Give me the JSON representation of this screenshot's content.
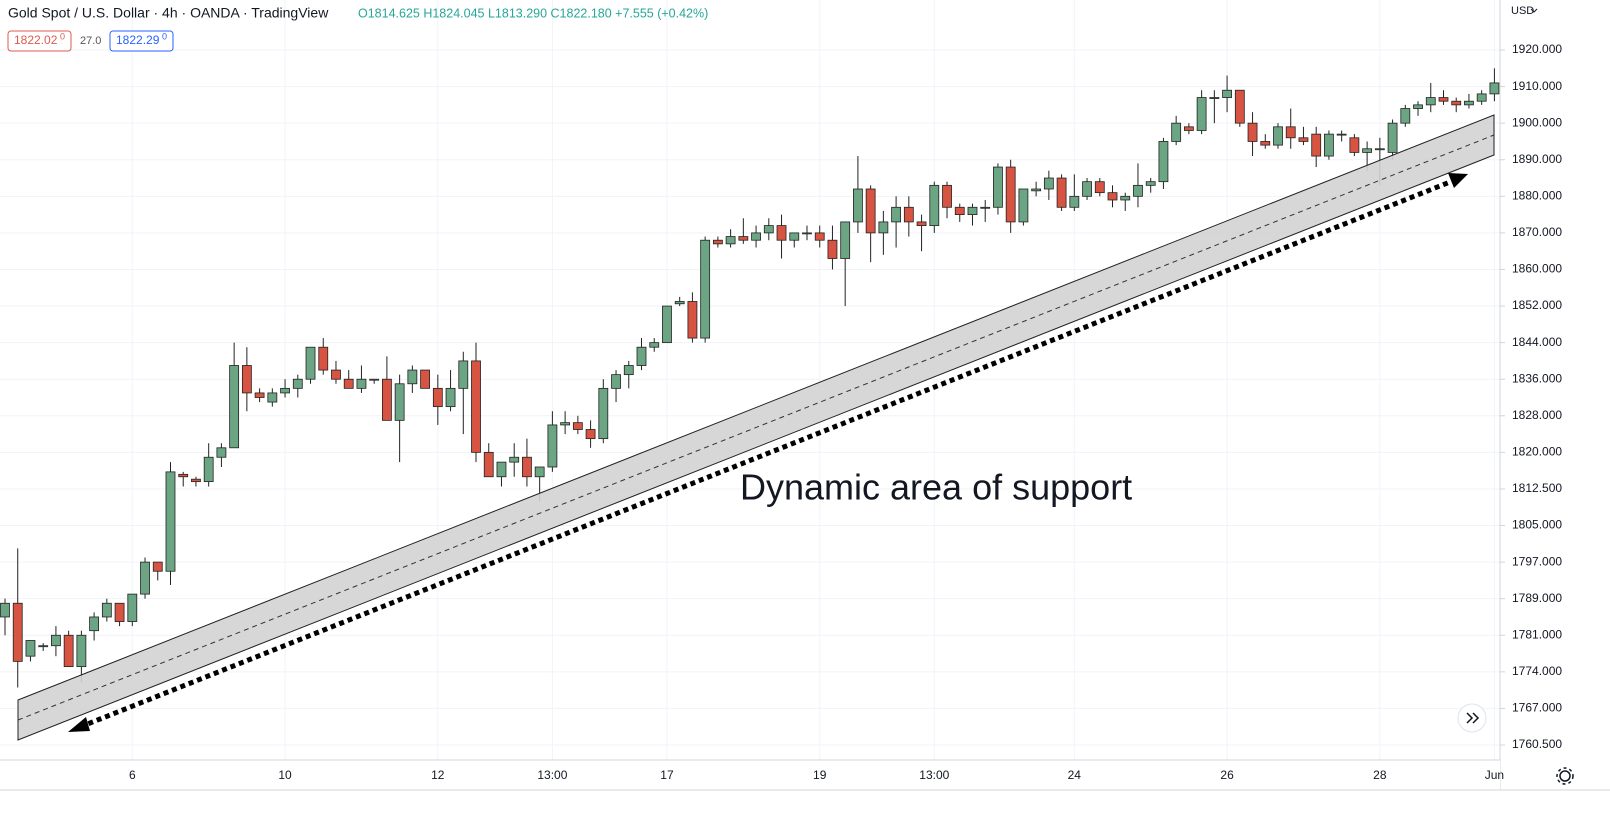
{
  "chart_data": {
    "type": "candlestick",
    "title": "Gold Spot / U.S. Dollar · 4h · OANDA · TradingView",
    "ohlc_text": "O1814.625 H1824.045 L1813.290 C1822.180 +7.555 (+0.42%)",
    "price_boxes": [
      {
        "main": "1822.02",
        "sup": "0"
      },
      {
        "main": "1822.29",
        "sup": "0"
      }
    ],
    "spread": "27.0",
    "currency": "USD",
    "annotation": "Dynamic area of support",
    "up_color": "#6ba583",
    "down_color": "#d75442",
    "open": [
      1785,
      1788,
      1777,
      1779,
      1779,
      1781,
      1775,
      1782,
      1785,
      1788,
      1784,
      1790,
      1797,
      1795,
      1815.5,
      1814.5,
      1814,
      1819,
      1821,
      1839,
      1833,
      1831,
      1833,
      1834,
      1836,
      1843,
      1838,
      1836,
      1834,
      1836,
      1836,
      1827,
      1835,
      1838,
      1834,
      1830,
      1834,
      1840,
      1820,
      1815,
      1818,
      1819,
      1815,
      1817,
      1826,
      1826.5,
      1825,
      1823,
      1834,
      1837,
      1839,
      1843,
      1844,
      1852.5,
      1853,
      1845,
      1868,
      1867,
      1869,
      1868,
      1870,
      1872,
      1868,
      1870,
      1870,
      1868,
      1863,
      1873,
      1882,
      1870,
      1873,
      1877,
      1873,
      1872,
      1883,
      1877,
      1875,
      1877,
      1877,
      1888,
      1873,
      1881.5,
      1882,
      1885,
      1877,
      1880,
      1884,
      1881,
      1879,
      1880,
      1883,
      1884,
      1895,
      1899,
      1898,
      1907,
      1907,
      1909,
      1900,
      1895,
      1894,
      1899,
      1896,
      1897,
      1891,
      1897,
      1896,
      1892,
      1893,
      1892,
      1900,
      1904,
      1905,
      1907,
      1906,
      1905,
      1906,
      1908
    ],
    "high": [
      1789,
      1800,
      1780,
      1779.5,
      1783,
      1782,
      1782,
      1786,
      1789,
      1788,
      1790,
      1798,
      1797,
      1818,
      1816,
      1815,
      1822,
      1822,
      1844,
      1843,
      1834,
      1834,
      1836,
      1837,
      1843,
      1845,
      1840,
      1838,
      1839,
      1836,
      1841,
      1837,
      1839,
      1838,
      1837,
      1838,
      1842,
      1844,
      1822,
      1818,
      1822,
      1823,
      1817,
      1829,
      1829,
      1828,
      1827,
      1836,
      1838,
      1840,
      1845,
      1845,
      1852,
      1854,
      1855,
      1869,
      1869,
      1871,
      1874,
      1872,
      1874,
      1875,
      1870,
      1872,
      1872,
      1872,
      1873,
      1891,
      1883,
      1876,
      1880,
      1880,
      1875,
      1884,
      1884,
      1878,
      1878,
      1879,
      1889,
      1890,
      1882,
      1884,
      1887,
      1886,
      1886,
      1885,
      1885,
      1883,
      1881,
      1889,
      1885,
      1896,
      1902,
      1900,
      1909,
      1909,
      1913,
      1909,
      1903,
      1897,
      1900,
      1904,
      1899,
      1899,
      1898,
      1898,
      1897,
      1895,
      1896,
      1901,
      1905,
      1906,
      1911,
      1909,
      1907,
      1908,
      1909,
      1915
    ],
    "low": [
      1781,
      1771,
      1776,
      1778,
      1777,
      1775,
      1772,
      1780,
      1784,
      1783,
      1783,
      1789,
      1793,
      1792,
      1813,
      1813,
      1813,
      1817,
      1821,
      1829,
      1831,
      1830,
      1832,
      1832,
      1835,
      1837,
      1835,
      1834,
      1833,
      1835,
      1827,
      1818,
      1833,
      1834,
      1826,
      1829,
      1824,
      1818,
      1815,
      1813,
      1815,
      1813,
      1810,
      1816,
      1824,
      1824,
      1821,
      1822,
      1831,
      1834,
      1838,
      1842,
      1844,
      1852,
      1844,
      1844,
      1866,
      1866,
      1867,
      1866,
      1868,
      1863,
      1866,
      1868,
      1866,
      1860,
      1852,
      1870,
      1862,
      1864,
      1866,
      1869,
      1865,
      1870,
      1874,
      1873,
      1872,
      1873,
      1875,
      1870,
      1872,
      1880,
      1879,
      1876,
      1876,
      1879,
      1880,
      1877,
      1876,
      1877,
      1881,
      1882,
      1894,
      1897,
      1897,
      1900,
      1903,
      1899,
      1891,
      1893,
      1893,
      1893,
      1894,
      1888,
      1890,
      1895,
      1891,
      1887,
      1883,
      1890,
      1899,
      1902,
      1903,
      1905,
      1903,
      1904,
      1905,
      1906
    ],
    "close": [
      1788,
      1776,
      1780,
      1779,
      1781,
      1775,
      1781,
      1785,
      1788,
      1784,
      1790,
      1797,
      1795,
      1816,
      1815,
      1814,
      1819,
      1821,
      1839,
      1833,
      1832,
      1833,
      1834,
      1836,
      1843,
      1838,
      1836,
      1834,
      1836,
      1836,
      1827,
      1835,
      1838,
      1834,
      1830,
      1834,
      1840,
      1820,
      1815,
      1818,
      1819,
      1815,
      1817,
      1826,
      1826.5,
      1825,
      1823,
      1834,
      1837,
      1839,
      1843,
      1844,
      1852,
      1853,
      1845,
      1868,
      1867,
      1869,
      1868,
      1870,
      1872,
      1868,
      1870,
      1870,
      1868,
      1863,
      1873,
      1882,
      1870,
      1873,
      1877,
      1873,
      1872,
      1883,
      1877,
      1875,
      1877,
      1877,
      1888,
      1873,
      1882,
      1882,
      1885,
      1877,
      1880,
      1884,
      1881,
      1879,
      1880,
      1883,
      1884,
      1895,
      1900,
      1898,
      1907,
      1907,
      1909,
      1900,
      1895,
      1894,
      1899,
      1896,
      1895,
      1891,
      1897,
      1897,
      1892,
      1893,
      1893,
      1900,
      1904,
      1905,
      1907,
      1906,
      1905,
      1906,
      1908,
      1911
    ],
    "ylim": [
      1757,
      1931.6
    ],
    "yticks": [
      {
        "value": 1760.5,
        "label": "1760.500"
      },
      {
        "value": 1767,
        "label": "1767.000"
      },
      {
        "value": 1774,
        "label": "1774.000"
      },
      {
        "value": 1781,
        "label": "1781.000"
      },
      {
        "value": 1789,
        "label": "1789.000"
      },
      {
        "value": 1797,
        "label": "1797.000"
      },
      {
        "value": 1805,
        "label": "1805.000"
      },
      {
        "value": 1812.5,
        "label": "1812.500"
      },
      {
        "value": 1820,
        "label": "1820.000"
      },
      {
        "value": 1828,
        "label": "1828.000"
      },
      {
        "value": 1836,
        "label": "1836.000"
      },
      {
        "value": 1844,
        "label": "1844.000"
      },
      {
        "value": 1852,
        "label": "1852.000"
      },
      {
        "value": 1860,
        "label": "1860.000"
      },
      {
        "value": 1870,
        "label": "1870.000"
      },
      {
        "value": 1880,
        "label": "1880.000"
      },
      {
        "value": 1890,
        "label": "1890.000"
      },
      {
        "value": 1900,
        "label": "1900.000"
      },
      {
        "value": 1910,
        "label": "1910.000"
      },
      {
        "value": 1920,
        "label": "1920.000"
      }
    ],
    "xticks": [
      {
        "value": 10,
        "label": "6"
      },
      {
        "value": 22,
        "label": "10"
      },
      {
        "value": 34,
        "label": "12"
      },
      {
        "value": 43,
        "label": "13:00"
      },
      {
        "value": 52,
        "label": "17"
      },
      {
        "value": 64,
        "label": "19"
      },
      {
        "value": 73,
        "label": "13:00"
      },
      {
        "value": 84,
        "label": "24"
      },
      {
        "value": 96,
        "label": "26"
      },
      {
        "value": 108,
        "label": "28"
      },
      {
        "value": 117,
        "label": "Jun"
      }
    ],
    "grid": true
  }
}
